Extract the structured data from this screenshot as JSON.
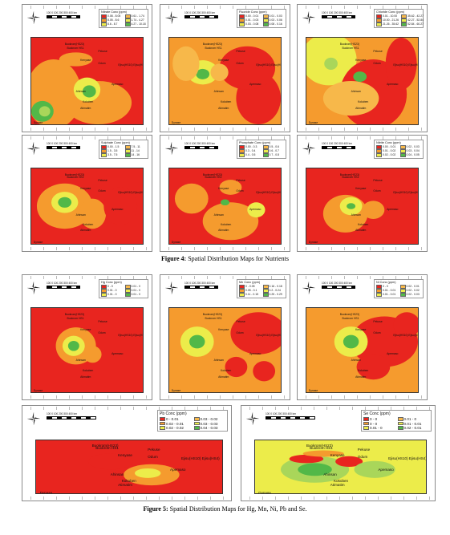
{
  "figure4": {
    "caption_label": "Figure 4:",
    "caption_text": " Spatial Distribution Maps for Nutrients"
  },
  "figure5": {
    "caption_label": "Figure 5:",
    "caption_text": " Spatial Distribution Maps for Hg, Mn, Ni, Pb and Se."
  },
  "scale_text": "100  0  100 200 300 400 km",
  "colors": {
    "red": "#e8251f",
    "orange": "#f59b2e",
    "light_orange": "#f7b84a",
    "yellow": "#ecec4a",
    "light_green": "#a9d65a",
    "green": "#52b848"
  },
  "maps": [
    {
      "id": "nitrate",
      "legend_title": "Nitrate Conc (ppm)",
      "legend": [
        "0.08 - 8.05",
        "0.61 - 1.74",
        "8.05 - 8.6",
        "1.74 - 4.27",
        "8.6 - 8.7",
        "4.27 - 10.18"
      ],
      "places": [
        "Buokrom(HS23)",
        "Buokrom HS1",
        "Pekuse",
        "Kenyase",
        "Odum",
        "Ejisu(HS10) Ejisu(HS4)",
        "Apemaso",
        "Ahinsan",
        "Kokoben",
        "Atimatim",
        "Dynase"
      ]
    },
    {
      "id": "fluoride",
      "legend_title": "Fluoride Conc (ppm)",
      "legend": [
        "0.00 - 0.01",
        "0.01 - 0.03",
        "0.01 - 0.03",
        "0.03 - 0.06",
        "0.03 - 0.08",
        "0.08 - 0.16"
      ],
      "places": [
        "Buokrom(HS23)",
        "Buokrom HS1",
        "Pekuse",
        "Kenyase",
        "Odum",
        "Ejisu(HS10) Ejisu(HS4)",
        "Apemaso",
        "Ahinsan",
        "Kokoben",
        "Atimatim",
        "Dynase"
      ]
    },
    {
      "id": "chloride",
      "legend_title": "Chloride Conc (ppm)",
      "legend": [
        "0.01 - 10.00",
        "35.62 - 42.27",
        "10.00 - 21.26",
        "42.27 - 52.84",
        "21.26 - 35.62",
        "52.84 - 60.27"
      ],
      "places": [
        "Buokrom(HS23)",
        "Buokrom HS1",
        "Pekuse",
        "Kenyase",
        "Odum",
        "Ejisu(HS10) Ejisu(HS4)",
        "Apemaso",
        "Ahinsan",
        "Kokoben",
        "Atimatim",
        "Dynase"
      ]
    },
    {
      "id": "sulphate",
      "legend_title": "Sulphate Conc (ppm)",
      "legend": [
        "0.00 - 1.5",
        "7.5 - 11",
        "1.5 - 3.5",
        "11 - 14",
        "3.5 - 7.5",
        "14 - 16"
      ],
      "places": [
        "Buokrom(HS23)",
        "Buokrom HS1",
        "Pekuse",
        "Kenyase",
        "Odum",
        "Ejisu(HS10) Ejisu(HS4)",
        "Apemaso",
        "Ahinsan",
        "Kokoben",
        "Atimatim",
        "Dynase"
      ]
    },
    {
      "id": "phosphate",
      "legend_title": "Phosphate Conc (ppm)",
      "legend": [
        "0.00 - 0.3",
        "0.5 - 0.6",
        "0.3 - 0.4",
        "0.6 - 0.7",
        "0.4 - 0.5",
        "0.7 - 0.8"
      ],
      "places": [
        "Buokrom(HS23)",
        "Buokrom HS1",
        "Pekuse",
        "Kenyase",
        "Odum",
        "Ejisu(HS10) Ejisu(HS4)",
        "Apemaso",
        "Ahinsan",
        "Kokoben",
        "Atimatim",
        "Dynase"
      ]
    },
    {
      "id": "nitrite",
      "legend_title": "Nitrite Conc (ppm)",
      "legend": [
        "0.00 - 0.01",
        "0.02 - 0.03",
        "0.01 - 0.02",
        "0.03 - 0.04",
        "0.02 - 0.02",
        "0.04 - 0.05"
      ],
      "places": [
        "Buokrom(HS23)",
        "Buokrom HS1",
        "Pekuse",
        "Kenyase",
        "Odum",
        "Ejisu(HS10) Ejisu(HS4)",
        "Apemaso",
        "Ahinsan",
        "Kokoben",
        "Atimatim",
        "Dynase"
      ]
    },
    {
      "id": "hg",
      "legend_title": "Hg Conc (ppm)",
      "legend": [
        "0 - 0",
        "0.01 - 0",
        "0.01 - 0",
        "0.01 - 0",
        "0.01 - 0",
        "0.01 - 0"
      ],
      "places": [
        "Buokrom(HS23)",
        "Buokrom HS1",
        "Pekuse",
        "Kenyase",
        "Odum",
        "Ejisu(HS10) Ejisu(HS4)",
        "Apemaso",
        "Ahinsan",
        "Kokoben",
        "Atimatim",
        "Dynase"
      ]
    },
    {
      "id": "mn",
      "legend_title": "Mn Conc (ppm)",
      "legend": [
        "0 - 0.05",
        "0.16 - 0.18",
        "0.05 - 0.1",
        "0.2 - 0.24",
        "0.11 - 0.15",
        "0.25 - 0.29"
      ],
      "places": [
        "Buokrom(HS23)",
        "Buokrom HS1",
        "Pekuse",
        "Kenyase",
        "Odum",
        "Ejisu(HS10) Ejisu(HS4)",
        "Apemaso",
        "Ahinsan",
        "Kokoben",
        "Atimatim",
        "Dynase"
      ]
    },
    {
      "id": "ni",
      "legend_title": "Ni Conc (ppm)",
      "legend": [
        "0 - 0",
        "0.02 - 0.01",
        "0.01 - 0.01",
        "0.02 - 0.02",
        "0.01 - 0.01",
        "0.02 - 0.03"
      ],
      "places": [
        "Buokrom(HS23)",
        "Buokrom HS1",
        "Pekuse",
        "Kenyase",
        "Odum",
        "Ejisu(HS10) Ejisu(HS4)",
        "Apemaso",
        "Ahinsan",
        "Kokoben",
        "Atimatim",
        "Dynase"
      ]
    },
    {
      "id": "pb",
      "legend_title": "Pb Conc (ppm)",
      "legend": [
        "0 - 0.01",
        "0.03 - 0.02",
        "0.02 - 0.01",
        "0.03 - 0.03",
        "0.02 - 0.02",
        "0.04 - 0.03"
      ],
      "places": [
        "Buokrom(HS23)",
        "Buokrom HS1",
        "Pekuse",
        "Kenyase",
        "Odum",
        "Ejisu(HS10) Ejisu(HS4)",
        "Apemaso",
        "Ahinsan",
        "Kokoben",
        "Atimatim",
        "Dynase"
      ]
    },
    {
      "id": "se",
      "legend_title": "Se Conc (ppm)",
      "legend": [
        "0 - 0",
        "0.01 - 0",
        "0 - 0",
        "0.01 - 0.01",
        "0.01 - 0",
        "0.02 - 0.01"
      ],
      "places": [
        "Buokrom(HS23)",
        "Buokrom HS1",
        "Pekuse",
        "Kenyase",
        "Odum",
        "Ejisu(HS10) Ejisu(HS4)",
        "Apemaso",
        "Ahinsan",
        "Kokoben",
        "Atimatim",
        "Dynase"
      ]
    }
  ]
}
